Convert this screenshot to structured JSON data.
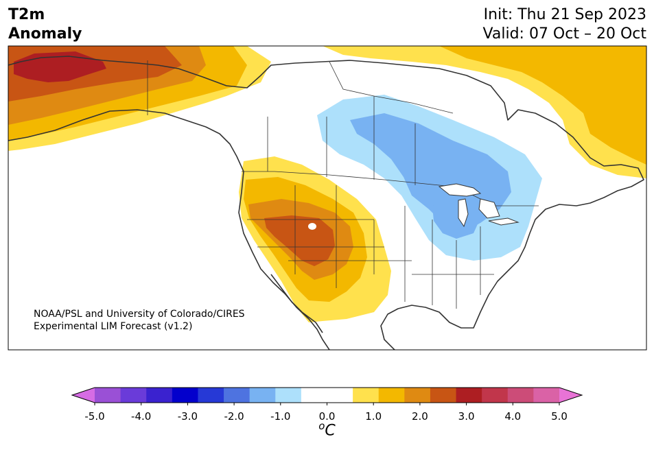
{
  "title": {
    "left_line1": "T2m",
    "left_line2": "Anomaly",
    "init": "Init: Thu 21 Sep 2023",
    "valid": "Valid: 07 Oct – 20 Oct"
  },
  "credit": {
    "line1": "NOAA/PSL and University of Colorado/CIRES",
    "line2": "Experimental LIM Forecast (v1.2)"
  },
  "colorbar": {
    "colors": [
      "#d66ce4",
      "#9a50d6",
      "#6a3bd9",
      "#3a22cf",
      "#0300cc",
      "#2639d6",
      "#4e73e0",
      "#78b2f2",
      "#ade0fb",
      "#ffffff",
      "#ffffff",
      "#ffe14d",
      "#f3b800",
      "#df8a12",
      "#c85514",
      "#ad1e22",
      "#c1364b",
      "#cc4c78",
      "#da62a6",
      "#e873d6"
    ],
    "tick_labels": [
      "-5.0",
      "-4.0",
      "-3.0",
      "-2.0",
      "-1.0",
      "0.0",
      "1.0",
      "2.0",
      "3.0",
      "4.0",
      "5.0"
    ],
    "unit_sup": "o",
    "unit_main": "C"
  }
}
